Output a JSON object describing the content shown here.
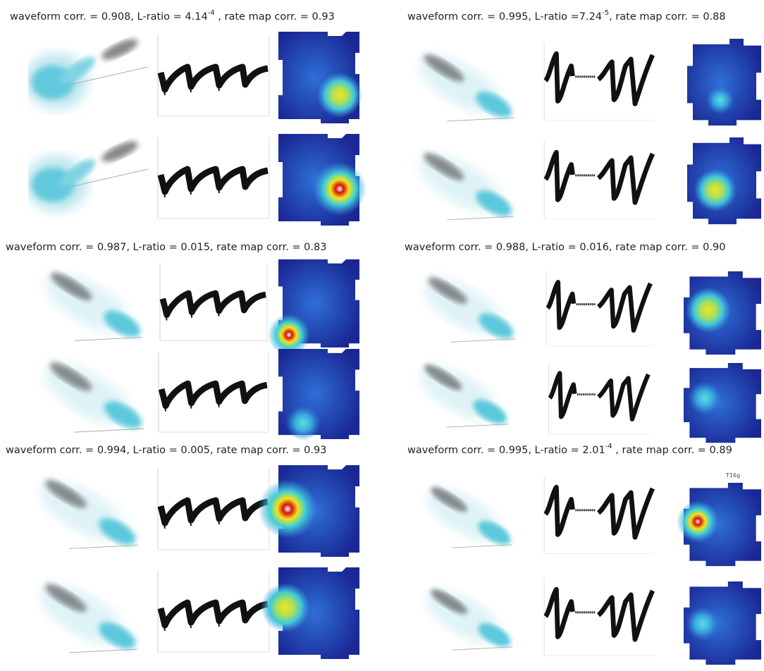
{
  "panels": [
    {
      "caption": {
        "text": "waveform corr. = 0.908, L-ratio = 4.14",
        "superscript": "-4",
        "tail": " , rate map corr. = 0.93"
      }
    },
    {
      "caption": {
        "text": "waveform corr. = 0.995, L-ratio =7.24",
        "superscript": "-5",
        "tail": ", rate map corr. = 0.88"
      }
    },
    {
      "caption": {
        "text": "waveform corr. = 0.987, L-ratio = 0.015, rate map corr. = 0.83"
      }
    },
    {
      "caption": {
        "text": "waveform corr. = 0.988, L-ratio = 0.016, rate map corr. = 0.90"
      }
    },
    {
      "caption": {
        "text": "waveform corr. = 0.994, L-ratio = 0.005, rate map corr. = 0.93"
      }
    },
    {
      "caption": {
        "text": "waveform corr. = 0.995, L-ratio = 2.01",
        "superscript": "-4",
        "tail": " , rate map corr. = 0.89"
      },
      "label": "T16g"
    }
  ]
}
